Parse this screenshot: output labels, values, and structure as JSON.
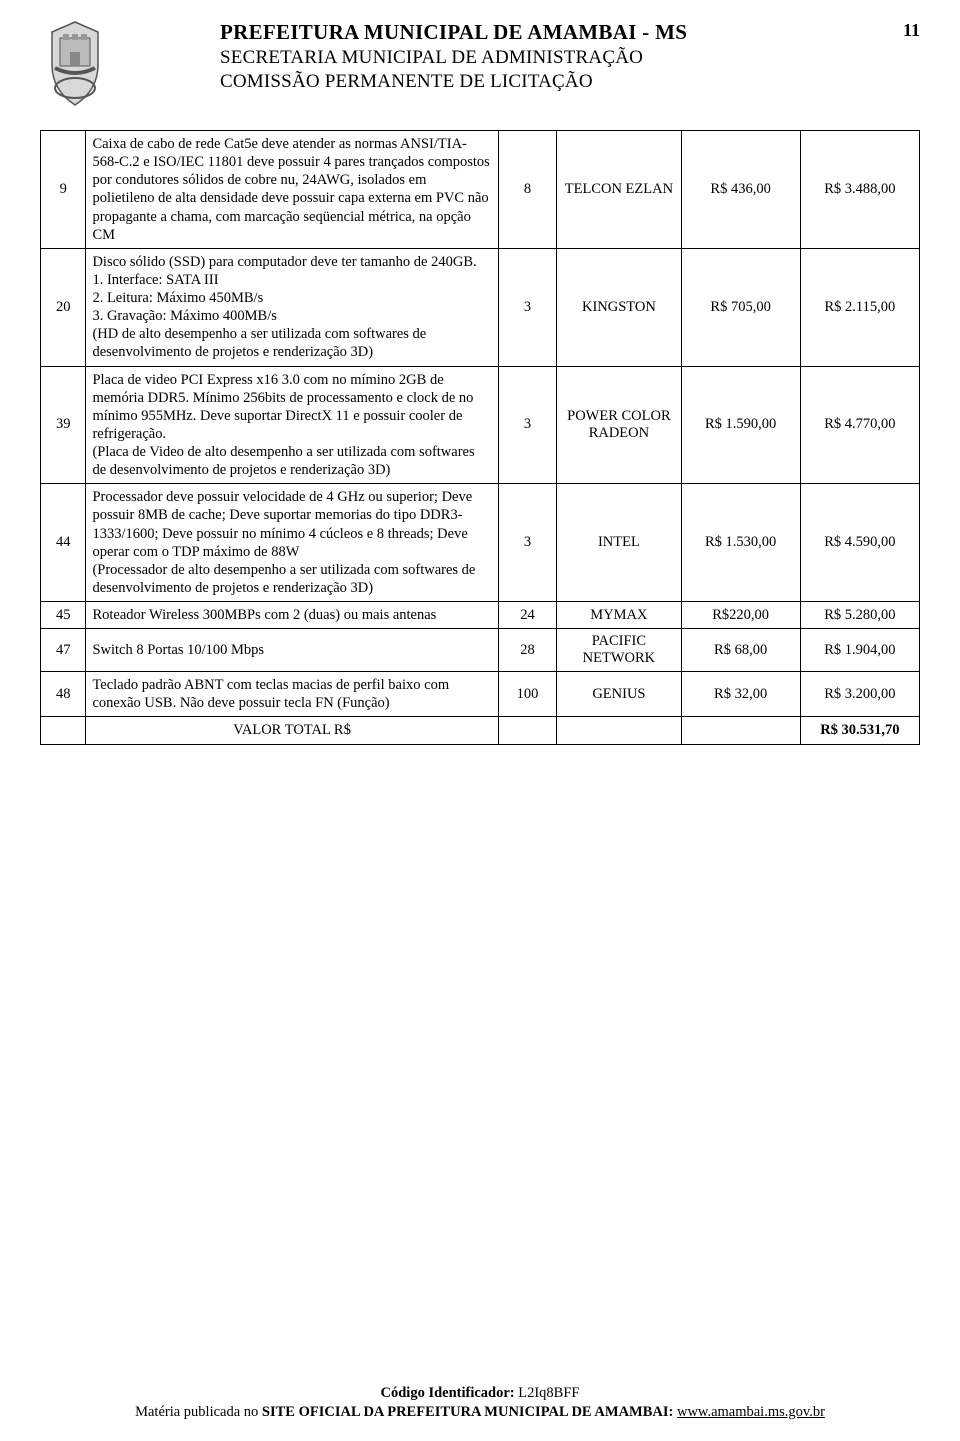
{
  "header": {
    "title": "PREFEITURA MUNICIPAL DE AMAMBAI - MS",
    "sub1": "SECRETARIA MUNICIPAL DE ADMINISTRAÇÃO",
    "sub2": "COMISSÃO PERMANENTE DE LICITAÇÃO",
    "page_number": "11"
  },
  "table": {
    "rows": [
      {
        "num": "9",
        "desc": "Caixa de cabo de rede Cat5e deve atender as normas ANSI/TIA-568-C.2 e ISO/IEC 11801 deve possuir 4 pares trançados compostos por condutores sólidos de cobre nu, 24AWG, isolados em polietileno de alta densidade deve possuir capa externa em PVC não propagante a chama, com marcação seqüencial métrica, na opção CM",
        "qty": "8",
        "brand": "TELCON EZLAN",
        "unit": "R$ 436,00",
        "total": "R$ 3.488,00"
      },
      {
        "num": "20",
        "desc": "Disco sólido (SSD) para computador deve ter tamanho de 240GB.\n1. Interface: SATA III\n2. Leitura: Máximo 450MB/s\n3. Gravação: Máximo 400MB/s\n(HD de alto desempenho a ser utilizada com softwares de desenvolvimento de projetos e renderização 3D)",
        "qty": "3",
        "brand": "KINGSTON",
        "unit": "R$ 705,00",
        "total": "R$ 2.115,00"
      },
      {
        "num": "39",
        "desc": "Placa de video PCI Express x16 3.0 com no mímino 2GB de memória DDR5. Mínimo 256bits de processamento e clock de no mínimo 955MHz. Deve suportar DirectX 11 e possuir cooler de refrigeração.\n(Placa de Video de alto desempenho a ser utilizada com softwares de desenvolvimento de projetos e renderização 3D)",
        "qty": "3",
        "brand": "POWER COLOR RADEON",
        "unit": "R$ 1.590,00",
        "total": "R$  4.770,00"
      },
      {
        "num": "44",
        "desc": "Processador deve possuir velocidade de 4 GHz ou superior; Deve possuir 8MB de cache; Deve suportar memorias do tipo DDR3-1333/1600; Deve possuir no mínimo 4 cúcleos e 8 threads; Deve operar com o TDP máximo de 88W\n(Processador de alto desempenho a ser utilizada com softwares de desenvolvimento de projetos e renderização 3D)",
        "qty": "3",
        "brand": "INTEL",
        "unit": "R$ 1.530,00",
        "total": "R$ 4.590,00"
      },
      {
        "num": "45",
        "desc": "Roteador Wireless 300MBPs com 2 (duas) ou mais antenas",
        "qty": "24",
        "brand": "MYMAX",
        "unit": "R$220,00",
        "total": "R$ 5.280,00"
      },
      {
        "num": "47",
        "desc": "Switch 8 Portas 10/100 Mbps",
        "qty": "28",
        "brand": "PACIFIC NETWORK",
        "unit": "R$ 68,00",
        "total": "R$ 1.904,00"
      },
      {
        "num": "48",
        "desc": "Teclado padrão ABNT com teclas macias de perfil baixo com conexão USB. Não deve possuir tecla FN (Função)",
        "qty": "100",
        "brand": "GENIUS",
        "unit": "R$ 32,00",
        "total": "R$  3.200,00"
      }
    ],
    "total_label": "VALOR TOTAL R$",
    "total_value": "R$ 30.531,70"
  },
  "footer": {
    "code_label": "Código Identificador:",
    "code_value": "L2Iq8BFF",
    "pub_prefix": "Matéria publicada no ",
    "pub_bold": "SITE OFICIAL DA PREFEITURA MUNICIPAL DE AMAMBAI:",
    "pub_link": "www.amambai.ms.gov.br"
  }
}
